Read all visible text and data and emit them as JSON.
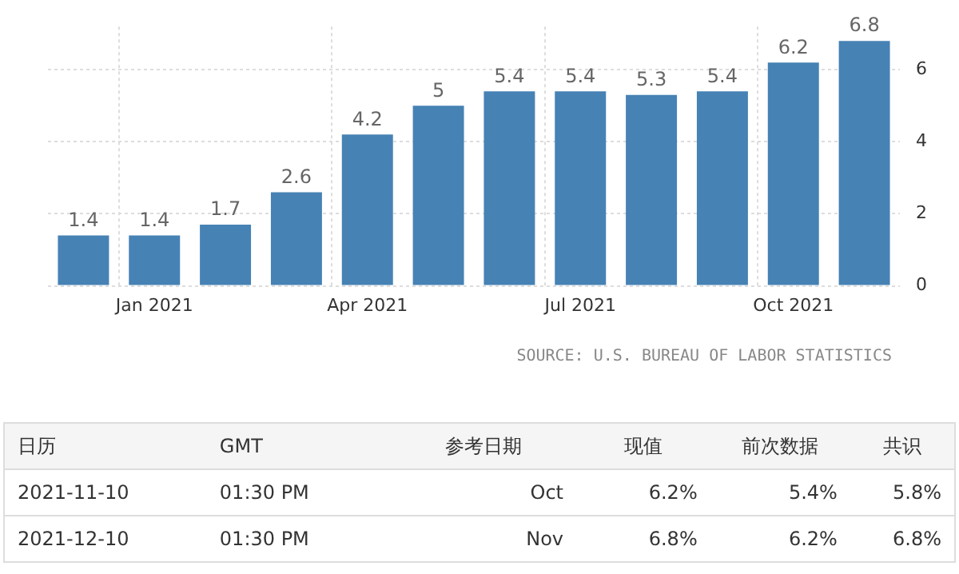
{
  "chart_data": [
    {
      "type": "bar",
      "categories": [
        null,
        "Jan 2021",
        null,
        null,
        "Apr 2021",
        null,
        null,
        "Jul 2021",
        null,
        null,
        "Oct 2021",
        null
      ],
      "values": [
        1.4,
        1.4,
        1.7,
        2.6,
        4.2,
        5,
        5.4,
        5.4,
        5.3,
        5.4,
        6.2,
        6.8
      ],
      "color": "#4682b4",
      "ylim": [
        0,
        7.2
      ],
      "yticks": [
        0,
        2,
        4,
        6
      ],
      "grid": true,
      "data_labels": true,
      "annotations": [
        "SOURCE: U.S. BUREAU OF LABOR STATISTICS"
      ]
    },
    {
      "type": "other",
      "categories": [
        "日历",
        "GMT",
        "参考日期",
        "现值",
        "前次数据",
        "共识"
      ],
      "annotations": [
        "2021-11-10",
        "01:30 PM",
        "Oct",
        "6.2%",
        "5.4%",
        "5.8%",
        "2021-12-10",
        "01:30 PM",
        "Nov",
        "6.8%",
        "6.2%",
        "6.8%"
      ]
    }
  ]
}
